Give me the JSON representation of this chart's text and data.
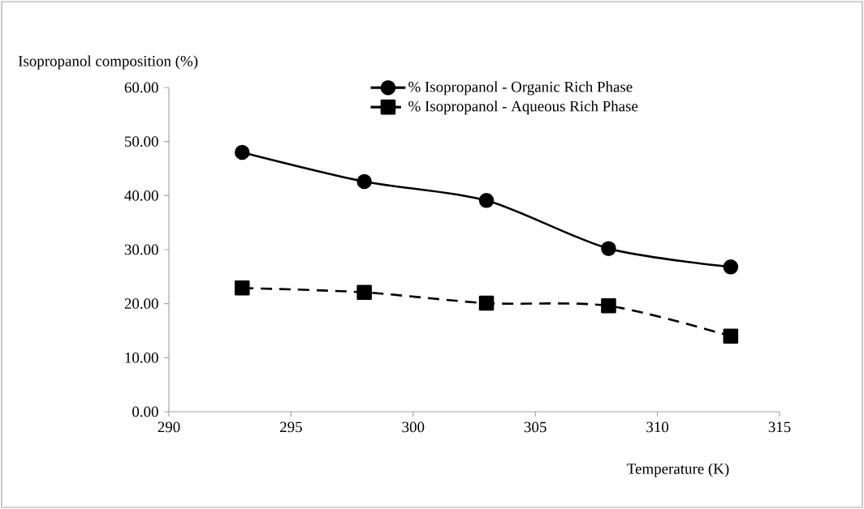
{
  "chart_data": {
    "type": "line",
    "ylabel": "Isopropanol composition  (%)",
    "xlabel": "Temperature (K)",
    "x": [
      293,
      298,
      303,
      308,
      313
    ],
    "series": [
      {
        "name": "% Isopropanol - Organic Rich Phase",
        "color": "#000000",
        "marker": "circle",
        "line_style": "solid",
        "values": [
          48.0,
          42.6,
          39.1,
          30.2,
          26.8
        ]
      },
      {
        "name": "% Isopropanol - Aqueous Rich Phase",
        "color": "#000000",
        "marker": "square",
        "line_style": "dashed",
        "values": [
          22.9,
          22.1,
          20.1,
          19.6,
          14.0
        ]
      }
    ],
    "xlim": [
      290,
      315
    ],
    "xticks": [
      290,
      295,
      300,
      305,
      310,
      315
    ],
    "ylim": [
      0,
      60
    ],
    "yticks": [
      {
        "value": 0,
        "label": "0.00"
      },
      {
        "value": 10,
        "label": "10.00"
      },
      {
        "value": 20,
        "label": "20.00"
      },
      {
        "value": 30,
        "label": "30.00"
      },
      {
        "value": 40,
        "label": "40.00"
      },
      {
        "value": 50,
        "label": "50.00"
      },
      {
        "value": 60,
        "label": "60.00"
      }
    ],
    "grid": false,
    "legend": "top"
  }
}
